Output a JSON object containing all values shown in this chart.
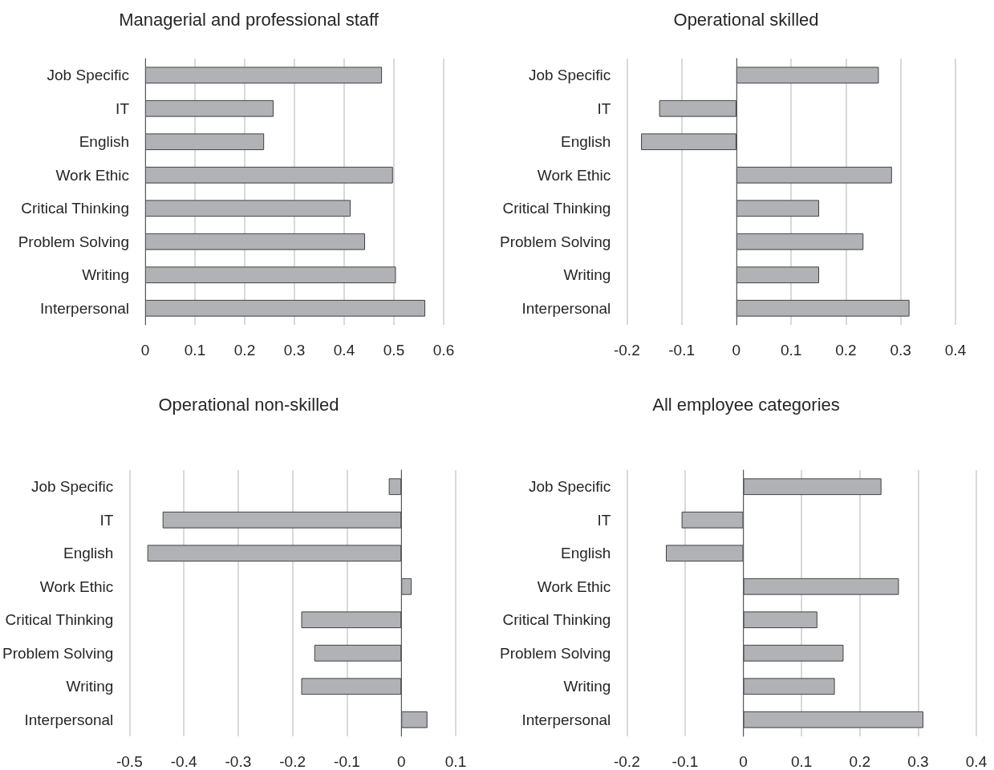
{
  "chart_data": [
    {
      "type": "bar",
      "orientation": "horizontal",
      "title": "Managerial and professional staff",
      "categories": [
        "Job Specific",
        "IT",
        "English",
        "Work Ethic",
        "Critical Thinking",
        "Problem Solving",
        "Writing",
        "Interpersonal"
      ],
      "values": [
        0.476,
        0.258,
        0.239,
        0.498,
        0.413,
        0.442,
        0.504,
        0.563
      ],
      "color": "#b1b2b6",
      "xlim": [
        0,
        0.6
      ],
      "xticks": [
        0,
        0.1,
        0.2,
        0.3,
        0.4,
        0.5,
        0.6
      ],
      "grid": "x"
    },
    {
      "type": "bar",
      "orientation": "horizontal",
      "title": "Operational skilled",
      "categories": [
        "Job Specific",
        "IT",
        "English",
        "Work Ethic",
        "Critical Thinking",
        "Problem Solving",
        "Writing",
        "Interpersonal"
      ],
      "values": [
        0.26,
        -0.141,
        -0.174,
        0.284,
        0.151,
        0.232,
        0.151,
        0.316
      ],
      "color": "#b1b2b6",
      "xlim": [
        -0.2,
        0.4
      ],
      "xticks": [
        -0.2,
        -0.1,
        0,
        0.1,
        0.2,
        0.3,
        0.4
      ],
      "grid": "x"
    },
    {
      "type": "bar",
      "orientation": "horizontal",
      "title": "Operational non-skilled",
      "categories": [
        "Job Specific",
        "IT",
        "English",
        "Work Ethic",
        "Critical Thinking",
        "Problem Solving",
        "Writing",
        "Interpersonal"
      ],
      "values": [
        -0.023,
        -0.439,
        -0.467,
        0.019,
        -0.184,
        -0.16,
        -0.184,
        0.048
      ],
      "color": "#b1b2b6",
      "xlim": [
        -0.5,
        0.1
      ],
      "xticks": [
        -0.5,
        -0.4,
        -0.3,
        -0.2,
        -0.1,
        0,
        0.1
      ],
      "grid": "x"
    },
    {
      "type": "bar",
      "orientation": "horizontal",
      "title": "All employee categories",
      "categories": [
        "Job Specific",
        "IT",
        "English",
        "Work Ethic",
        "Critical Thinking",
        "Problem Solving",
        "Writing",
        "Interpersonal"
      ],
      "values": [
        0.237,
        -0.106,
        -0.133,
        0.267,
        0.127,
        0.172,
        0.157,
        0.309
      ],
      "color": "#b1b2b6",
      "xlim": [
        -0.2,
        0.4
      ],
      "xticks": [
        -0.2,
        -0.1,
        0,
        0.1,
        0.2,
        0.3,
        0.4
      ],
      "grid": "x"
    }
  ]
}
